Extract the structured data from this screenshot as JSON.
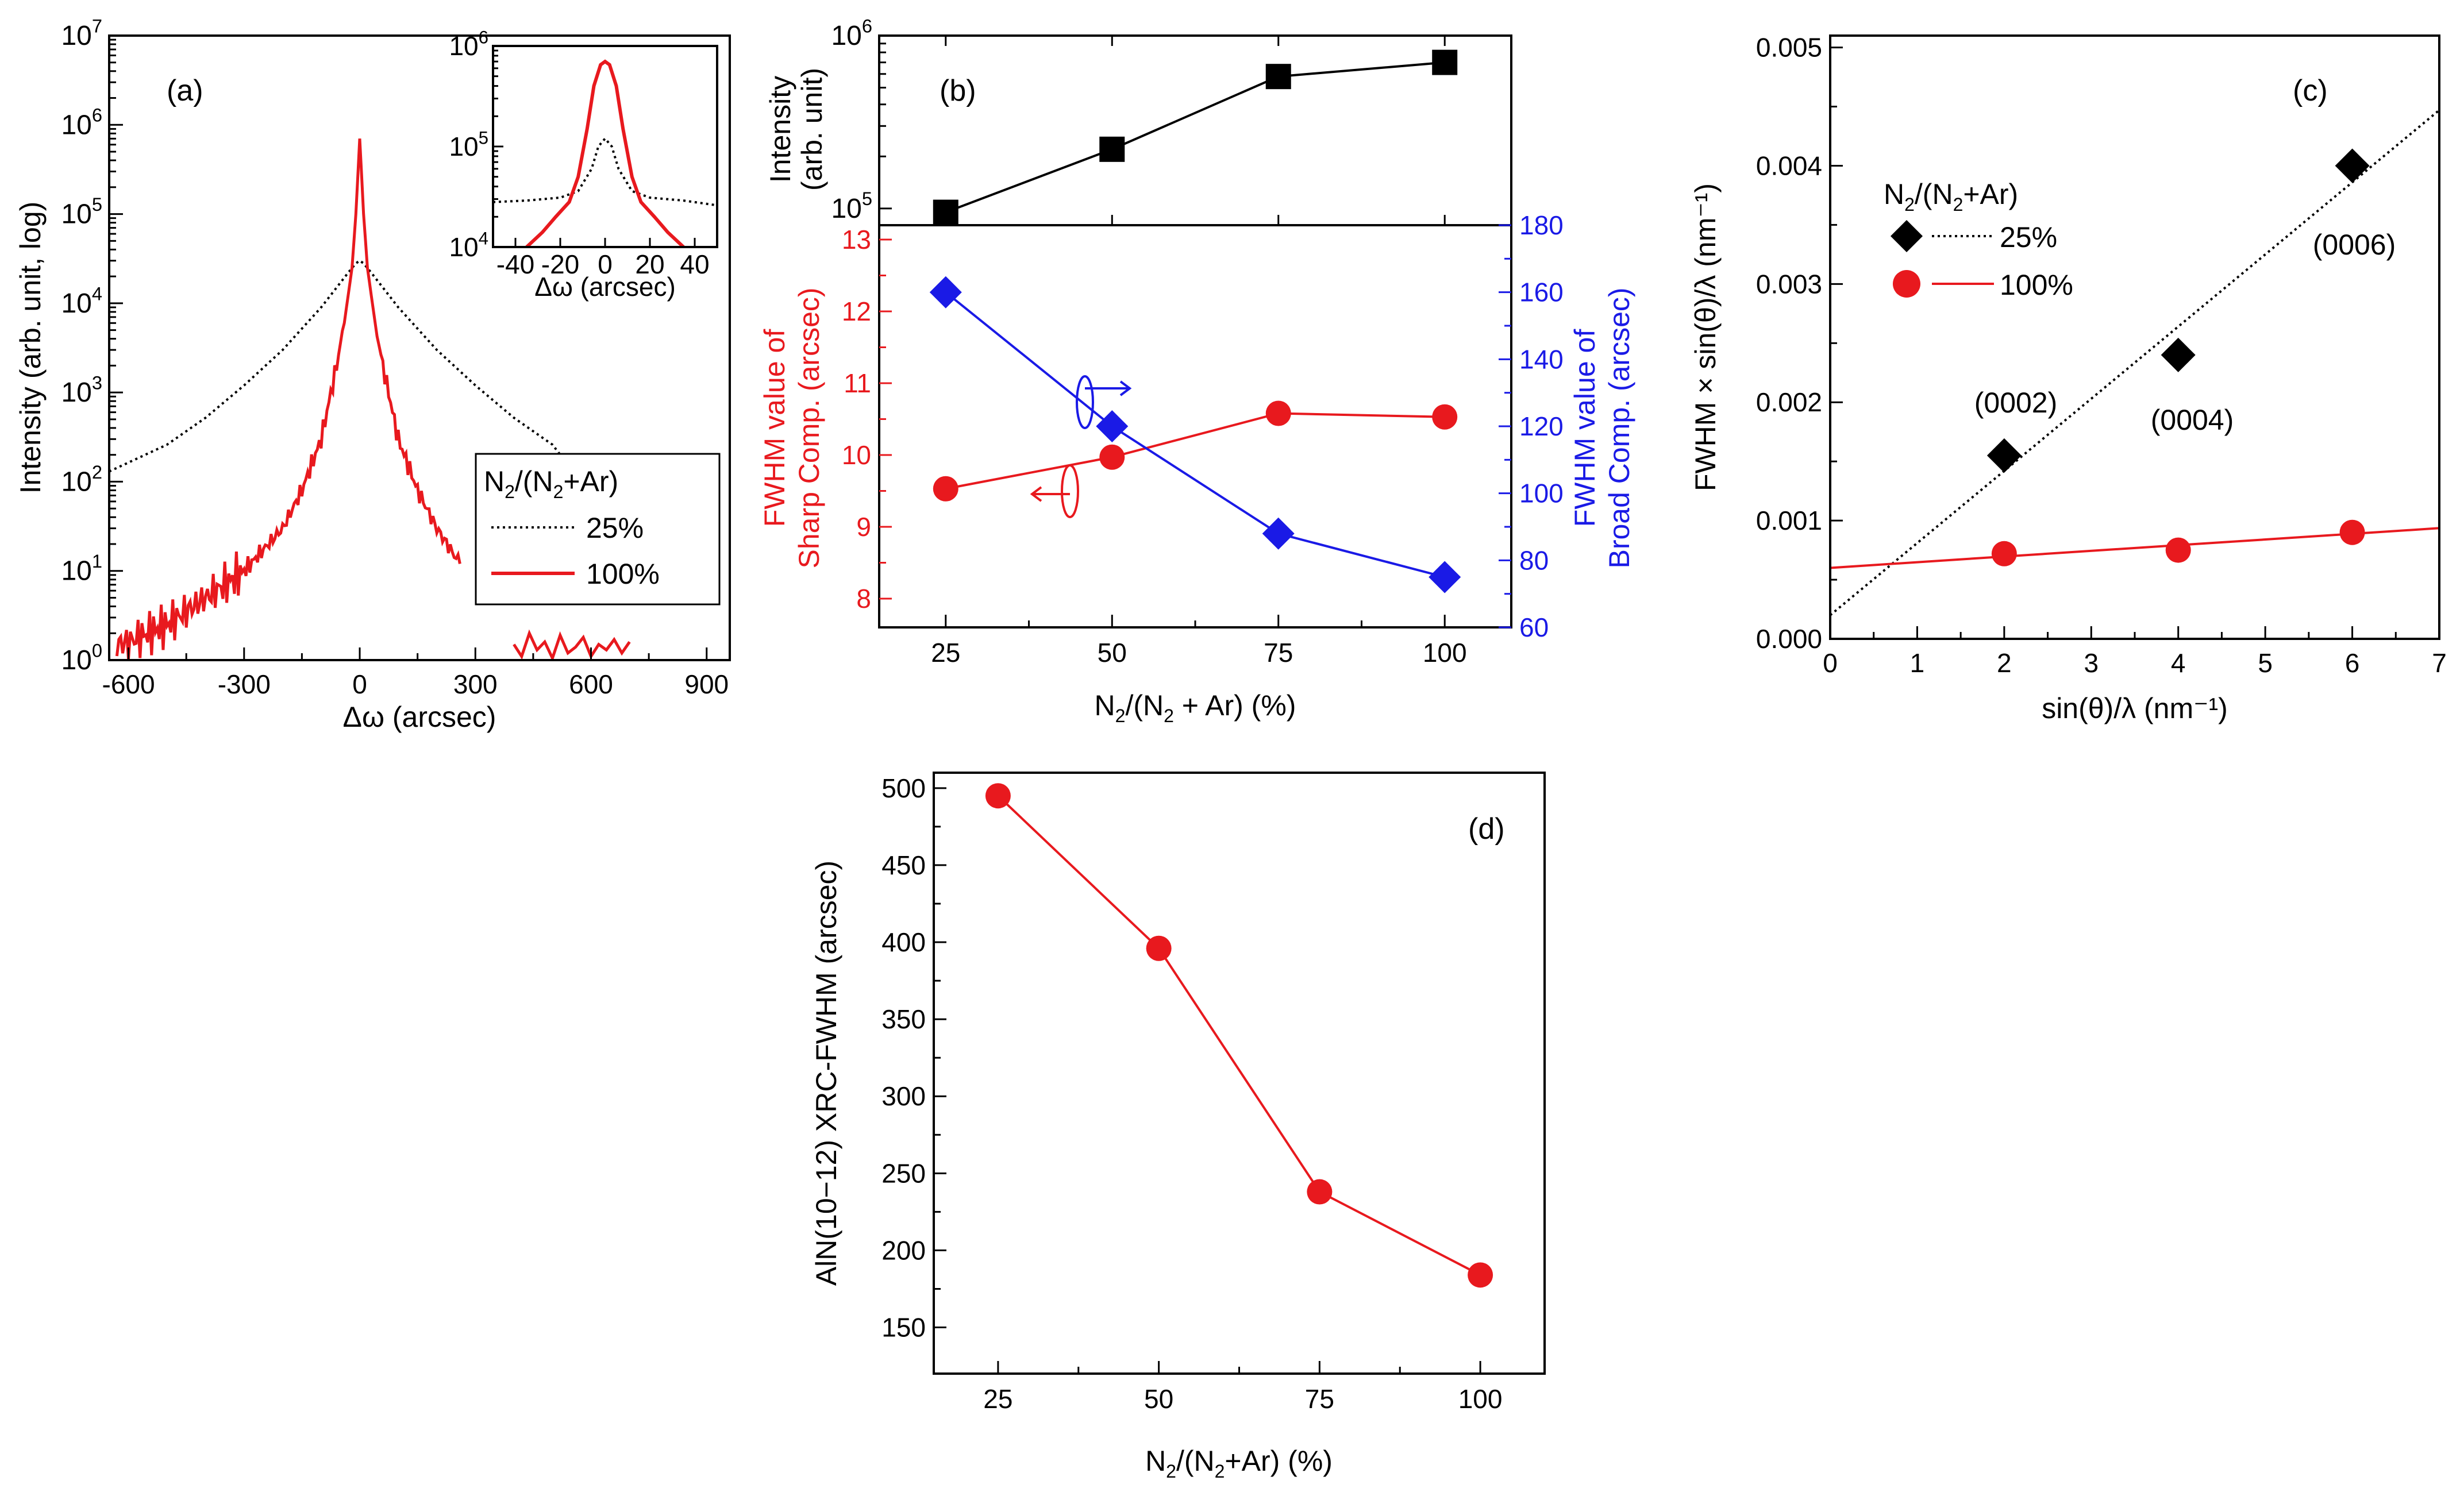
{
  "chart_data": [
    {
      "id": "a",
      "type": "line",
      "panel_label": "(a)",
      "xlabel": "Δω (arcsec)",
      "ylabel": "Intensity (arb. unit, log)",
      "xlim": [
        -650,
        960
      ],
      "ylim": [
        1,
        10000000
      ],
      "yscale": "log",
      "xticks": [
        "-600",
        "-300",
        "0",
        "300",
        "600",
        "900"
      ],
      "yticks": [
        {
          "base": "10",
          "exp": "0"
        },
        {
          "base": "10",
          "exp": "1"
        },
        {
          "base": "10",
          "exp": "2"
        },
        {
          "base": "10",
          "exp": "3"
        },
        {
          "base": "10",
          "exp": "4"
        },
        {
          "base": "10",
          "exp": "5"
        },
        {
          "base": "10",
          "exp": "6"
        },
        {
          "base": "10",
          "exp": "7"
        }
      ],
      "legend": {
        "title": {
          "main": "N",
          "sub": "2",
          "rest": "/(N",
          "sub2": "2",
          "rest2": "+Ar)"
        },
        "entries": [
          {
            "label": "25%",
            "color": "#000000",
            "style": "dotted"
          },
          {
            "label": "100%",
            "color": "#e8191e",
            "style": "solid"
          }
        ]
      },
      "series": [
        {
          "name": "25%",
          "x": [
            -650,
            -500,
            -400,
            -300,
            -200,
            -150,
            -100,
            -60,
            -30,
            -10,
            0,
            10,
            30,
            60,
            100,
            150,
            200,
            300,
            400,
            500,
            560
          ],
          "y": [
            130,
            260,
            520,
            1200,
            3000,
            5200,
            9000,
            15000,
            22000,
            28000,
            30000,
            28000,
            22000,
            15000,
            9000,
            5200,
            3000,
            1200,
            520,
            260,
            120
          ]
        },
        {
          "name": "100%",
          "x": [
            -630,
            -600,
            -550,
            -500,
            -400,
            -300,
            -200,
            -150,
            -100,
            -60,
            -40,
            -20,
            -10,
            0,
            10,
            20,
            40,
            60,
            100,
            150,
            200,
            260
          ],
          "y": [
            1.5,
            1.6,
            2,
            2.5,
            5,
            10,
            30,
            80,
            300,
            2000,
            6000,
            25000,
            100000,
            700000,
            100000,
            25000,
            6000,
            2000,
            300,
            80,
            30,
            12
          ]
        },
        {
          "name": "100% noise",
          "x": [
            400,
            420,
            440,
            460,
            480,
            500,
            520,
            540,
            560,
            580,
            600,
            620,
            640,
            660,
            680,
            700
          ],
          "y": [
            1.5,
            1.1,
            2,
            1.3,
            1.6,
            1.05,
            1.9,
            1.2,
            1.4,
            1.8,
            1.1,
            1.5,
            1.3,
            1.7,
            1.2,
            1.6
          ]
        }
      ],
      "inset": {
        "xlabel": "Δω (arcsec)",
        "xlim": [
          -50,
          50
        ],
        "ylim": [
          10000,
          1000000
        ],
        "yscale": "log",
        "xticks": [
          "-40",
          "-20",
          "0",
          "20",
          "40"
        ],
        "yticks": [
          {
            "base": "10",
            "exp": "4"
          },
          {
            "base": "10",
            "exp": "5"
          },
          {
            "base": "10",
            "exp": "6"
          }
        ],
        "series": [
          {
            "name": "25%",
            "x": [
              -50,
              -35,
              -20,
              -12,
              -6,
              -3,
              0,
              3,
              6,
              12,
              20,
              35,
              50
            ],
            "y": [
              28000,
              29000,
              31000,
              36000,
              60000,
              100000,
              120000,
              100000,
              60000,
              36000,
              31000,
              29000,
              26000
            ]
          },
          {
            "name": "100%",
            "x": [
              -35,
              -28,
              -22,
              -16,
              -12,
              -8,
              -5,
              -2,
              0,
              2,
              5,
              8,
              12,
              16,
              22,
              28,
              35
            ],
            "y": [
              10000,
              14000,
              20000,
              28000,
              50000,
              150000,
              400000,
              650000,
              700000,
              650000,
              400000,
              150000,
              50000,
              28000,
              20000,
              14000,
              10000
            ]
          }
        ]
      }
    },
    {
      "id": "b_top",
      "type": "line",
      "panel_label": "(b)",
      "ylabel": [
        "Intensity",
        "(arb. unit)"
      ],
      "yscale": "log",
      "ylim": [
        80000,
        1000000
      ],
      "yticks": [
        {
          "base": "10",
          "exp": "5"
        },
        {
          "base": "10",
          "exp": "6"
        }
      ],
      "categories": [
        25,
        50,
        75,
        100
      ],
      "series": [
        {
          "name": "Intensity",
          "values": [
            95000,
            220000,
            580000,
            700000
          ],
          "color": "#000000",
          "marker": "square"
        }
      ]
    },
    {
      "id": "b_bottom",
      "type": "line",
      "xlabel": {
        "main": "N",
        "sub": "2",
        "rest": "/(N",
        "sub2": "2",
        "rest2": " + Ar) (%)"
      },
      "ylabel_left": [
        "FWHM value of",
        "Sharp Comp. (arcsec)"
      ],
      "ylabel_right": [
        "FWHM value of",
        "Broad Comp. (arcsec)"
      ],
      "xlim": [
        15,
        110
      ],
      "ylim_left": [
        7.6,
        13.2
      ],
      "ylim_right": [
        60,
        180
      ],
      "xticks": [
        "25",
        "50",
        "75",
        "100"
      ],
      "yticks_left": [
        "8",
        "9",
        "10",
        "11",
        "12",
        "13"
      ],
      "yticks_right": [
        "60",
        "80",
        "100",
        "120",
        "140",
        "160",
        "180"
      ],
      "categories": [
        25,
        50,
        75,
        100
      ],
      "series": [
        {
          "name": "Sharp",
          "axis": "left",
          "values": [
            9.53,
            9.97,
            10.58,
            10.53
          ],
          "color": "#e8191e",
          "marker": "circle"
        },
        {
          "name": "Broad",
          "axis": "right",
          "values": [
            160,
            120,
            88,
            75
          ],
          "color": "#1a1ae6",
          "marker": "diamond"
        }
      ]
    },
    {
      "id": "c",
      "type": "scatter",
      "panel_label": "(c)",
      "xlabel": "sin(θ)/λ (nm⁻¹)",
      "ylabel": "FWHM × sin(θ)/λ (nm⁻¹)",
      "xlim": [
        0,
        7
      ],
      "ylim": [
        0,
        0.0051
      ],
      "xticks": [
        "0",
        "1",
        "2",
        "3",
        "4",
        "5",
        "6",
        "7"
      ],
      "yticks": [
        "0.000",
        "0.001",
        "0.002",
        "0.003",
        "0.004",
        "0.005"
      ],
      "legend": {
        "title": {
          "main": "N",
          "sub": "2",
          "rest": "/(N",
          "sub2": "2",
          "rest2": "+Ar)"
        },
        "entries": [
          {
            "label": "25%",
            "color": "#000000",
            "marker": "diamond",
            "style": "dotted"
          },
          {
            "label": "100%",
            "color": "#e8191e",
            "marker": "circle",
            "style": "solid"
          }
        ]
      },
      "annotations": [
        "(0002)",
        "(0004)",
        "(0006)"
      ],
      "series": [
        {
          "name": "25%",
          "x": [
            2,
            4,
            6
          ],
          "y": [
            0.00155,
            0.0024,
            0.004
          ],
          "fit": [
            0.0002,
            0.00061
          ],
          "color": "#000000"
        },
        {
          "name": "100%",
          "x": [
            2,
            4,
            6
          ],
          "y": [
            0.00072,
            0.00075,
            0.0009
          ],
          "fit": [
            0.0006,
            4.8e-05
          ],
          "color": "#e8191e"
        }
      ]
    },
    {
      "id": "d",
      "type": "line",
      "panel_label": "(d)",
      "xlabel": {
        "main": "N",
        "sub": "2",
        "rest": "/(N",
        "sub2": "2",
        "rest2": "+Ar) (%)"
      },
      "ylabel": "AlN(10−12) XRC-FWHM (arcsec)",
      "xlim": [
        15,
        110
      ],
      "ylim": [
        120,
        510
      ],
      "xticks": [
        "25",
        "50",
        "75",
        "100"
      ],
      "yticks": [
        "150",
        "200",
        "250",
        "300",
        "350",
        "400",
        "450",
        "500"
      ],
      "categories": [
        25,
        50,
        75,
        100
      ],
      "series": [
        {
          "name": "XRC-FWHM",
          "values": [
            495,
            396,
            238,
            184
          ],
          "color": "#e8191e",
          "marker": "circle"
        }
      ]
    }
  ]
}
